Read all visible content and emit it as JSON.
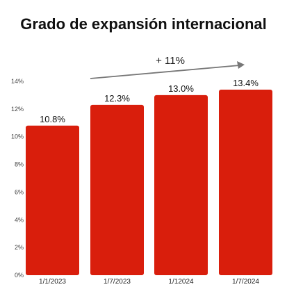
{
  "chart_data": {
    "type": "bar",
    "title": "Grado de expansión internacional",
    "categories": [
      "1/1/2023",
      "1/7/2023",
      "1/12024",
      "1/7/2024"
    ],
    "values": [
      10.8,
      12.3,
      13.0,
      13.4
    ],
    "data_labels": [
      "10.8%",
      "12.3%",
      "13.0%",
      "13.4%"
    ],
    "ylim": [
      0,
      14
    ],
    "yticks": [
      0,
      2,
      4,
      6,
      8,
      10,
      12,
      14
    ],
    "ytick_labels": [
      "0%",
      "2%",
      "4%",
      "6%",
      "8%",
      "10%",
      "12%",
      "14%"
    ],
    "xlabel": "",
    "ylabel": "",
    "grid": false,
    "bar_color": "#D91E0C",
    "annotation": {
      "text": "+ 11%",
      "arrow": "increasing trend over bars"
    }
  }
}
